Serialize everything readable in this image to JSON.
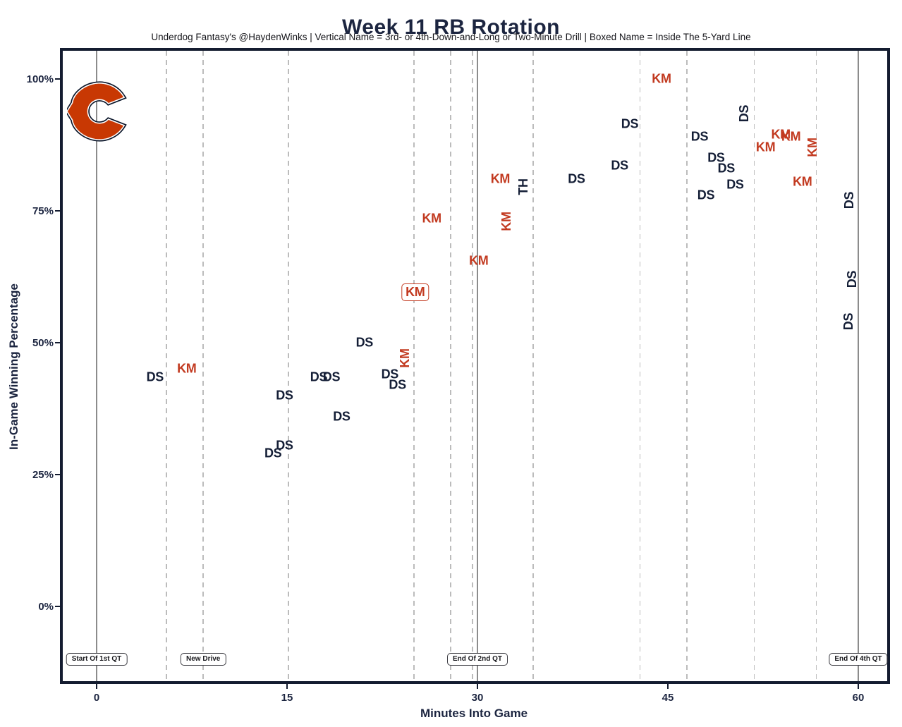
{
  "title": "Week 11 RB Rotation",
  "subtitle": "Underdog Fantasy's @HaydenWinks | Vertical Name = 3rd- or 4th-Down-and-Long or Two-Minute Drill | Boxed Name = Inside The 5-Yard Line",
  "colors": {
    "title_navy": "#1c2540",
    "label_navy": "#141e36",
    "label_red": "#c23a20",
    "dashed_line_gray": "#bcbcbc",
    "solid_line_gray": "#8c8c8c",
    "bears_orange": "#c83803",
    "bears_navy": "#0b162a"
  },
  "logo": {
    "name": "chicago-bears-c-logo"
  },
  "chart_data": {
    "type": "scatter",
    "title": "Week 11 RB Rotation",
    "xlabel": "Minutes Into Game",
    "ylabel": "In-Game Winning Percentage",
    "xlim": [
      -2.7,
      62.3
    ],
    "ylim": [
      -14,
      105
    ],
    "grid": "vertical dashed lines at drive starts; solid gray lines at quarter boundaries 0 / 30 / 60",
    "x_ticks": [
      {
        "label": "0",
        "minute": 0
      },
      {
        "label": "15",
        "minute": 15
      },
      {
        "label": "30",
        "minute": 30
      },
      {
        "label": "45",
        "minute": 45
      },
      {
        "label": "60",
        "minute": 60
      }
    ],
    "y_ticks": [
      {
        "label": "0%",
        "pct": 0
      },
      {
        "label": "25%",
        "pct": 25
      },
      {
        "label": "50%",
        "pct": 50
      },
      {
        "label": "75%",
        "pct": 75
      },
      {
        "label": "100%",
        "pct": 100
      }
    ],
    "drive_lines_minutes": [
      5.5,
      8.4,
      15.1,
      25.0,
      27.9,
      29.6,
      34.4,
      42.8,
      46.5,
      51.8,
      56.7
    ],
    "quarter_lines_minutes": [
      0,
      30,
      60
    ],
    "annotations": [
      {
        "label": "Start Of 1st QT",
        "minute": 0
      },
      {
        "label": "New Drive",
        "minute": 8.4
      },
      {
        "label": "End Of 2nd QT",
        "minute": 30
      },
      {
        "label": "End Of 4th QT",
        "minute": 60
      }
    ],
    "points": [
      {
        "player": "DS",
        "minute": 4.6,
        "win_pct": 43.5,
        "vertical": false,
        "boxed": false
      },
      {
        "player": "KM",
        "minute": 7.1,
        "win_pct": 45,
        "vertical": false,
        "boxed": false
      },
      {
        "player": "DS",
        "minute": 13.9,
        "win_pct": 29,
        "vertical": false,
        "boxed": false
      },
      {
        "player": "DS",
        "minute": 14.8,
        "win_pct": 30.5,
        "vertical": false,
        "boxed": false
      },
      {
        "player": "DS",
        "minute": 14.8,
        "win_pct": 40,
        "vertical": false,
        "boxed": false
      },
      {
        "player": "DS",
        "minute": 17.5,
        "win_pct": 43.5,
        "vertical": false,
        "boxed": false
      },
      {
        "player": "DS",
        "minute": 18.5,
        "win_pct": 43.5,
        "vertical": false,
        "boxed": false
      },
      {
        "player": "DS",
        "minute": 19.3,
        "win_pct": 36,
        "vertical": false,
        "boxed": false
      },
      {
        "player": "DS",
        "minute": 21.1,
        "win_pct": 50,
        "vertical": false,
        "boxed": false
      },
      {
        "player": "DS",
        "minute": 23.1,
        "win_pct": 44,
        "vertical": false,
        "boxed": false
      },
      {
        "player": "DS",
        "minute": 23.7,
        "win_pct": 42,
        "vertical": false,
        "boxed": false
      },
      {
        "player": "KM",
        "minute": 24.3,
        "win_pct": 47,
        "vertical": true,
        "boxed": false
      },
      {
        "player": "KM",
        "minute": 25.1,
        "win_pct": 59.5,
        "vertical": false,
        "boxed": true
      },
      {
        "player": "KM",
        "minute": 26.4,
        "win_pct": 73.5,
        "vertical": false,
        "boxed": false
      },
      {
        "player": "KM",
        "minute": 30.1,
        "win_pct": 65.5,
        "vertical": false,
        "boxed": false
      },
      {
        "player": "KM",
        "minute": 31.8,
        "win_pct": 81,
        "vertical": false,
        "boxed": false
      },
      {
        "player": "KM",
        "minute": 32.3,
        "win_pct": 73,
        "vertical": true,
        "boxed": false
      },
      {
        "player": "TH",
        "minute": 33.6,
        "win_pct": 79.5,
        "vertical": true,
        "boxed": false
      },
      {
        "player": "DS",
        "minute": 37.8,
        "win_pct": 81,
        "vertical": false,
        "boxed": false
      },
      {
        "player": "DS",
        "minute": 41.2,
        "win_pct": 83.5,
        "vertical": false,
        "boxed": false
      },
      {
        "player": "DS",
        "minute": 42.0,
        "win_pct": 91.5,
        "vertical": false,
        "boxed": false
      },
      {
        "player": "KM",
        "minute": 44.5,
        "win_pct": 100,
        "vertical": false,
        "boxed": false
      },
      {
        "player": "DS",
        "minute": 47.5,
        "win_pct": 89,
        "vertical": false,
        "boxed": false
      },
      {
        "player": "DS",
        "minute": 48.0,
        "win_pct": 78,
        "vertical": false,
        "boxed": false
      },
      {
        "player": "DS",
        "minute": 48.8,
        "win_pct": 85,
        "vertical": false,
        "boxed": false
      },
      {
        "player": "DS",
        "minute": 49.6,
        "win_pct": 83,
        "vertical": false,
        "boxed": false
      },
      {
        "player": "DS",
        "minute": 50.3,
        "win_pct": 80,
        "vertical": false,
        "boxed": false
      },
      {
        "player": "DS",
        "minute": 51.0,
        "win_pct": 93.5,
        "vertical": true,
        "boxed": false
      },
      {
        "player": "KM",
        "minute": 52.7,
        "win_pct": 87,
        "vertical": false,
        "boxed": false
      },
      {
        "player": "KM",
        "minute": 53.9,
        "win_pct": 89.5,
        "vertical": false,
        "boxed": false
      },
      {
        "player": "KM",
        "minute": 54.7,
        "win_pct": 89,
        "vertical": false,
        "boxed": false
      },
      {
        "player": "KM",
        "minute": 55.6,
        "win_pct": 80.5,
        "vertical": false,
        "boxed": false
      },
      {
        "player": "KM",
        "minute": 56.4,
        "win_pct": 87,
        "vertical": true,
        "boxed": false
      },
      {
        "player": "DS",
        "minute": 59.3,
        "win_pct": 77,
        "vertical": true,
        "boxed": false
      },
      {
        "player": "DS",
        "minute": 59.5,
        "win_pct": 62,
        "vertical": true,
        "boxed": false
      },
      {
        "player": "DS",
        "minute": 59.2,
        "win_pct": 54,
        "vertical": true,
        "boxed": false
      }
    ]
  }
}
